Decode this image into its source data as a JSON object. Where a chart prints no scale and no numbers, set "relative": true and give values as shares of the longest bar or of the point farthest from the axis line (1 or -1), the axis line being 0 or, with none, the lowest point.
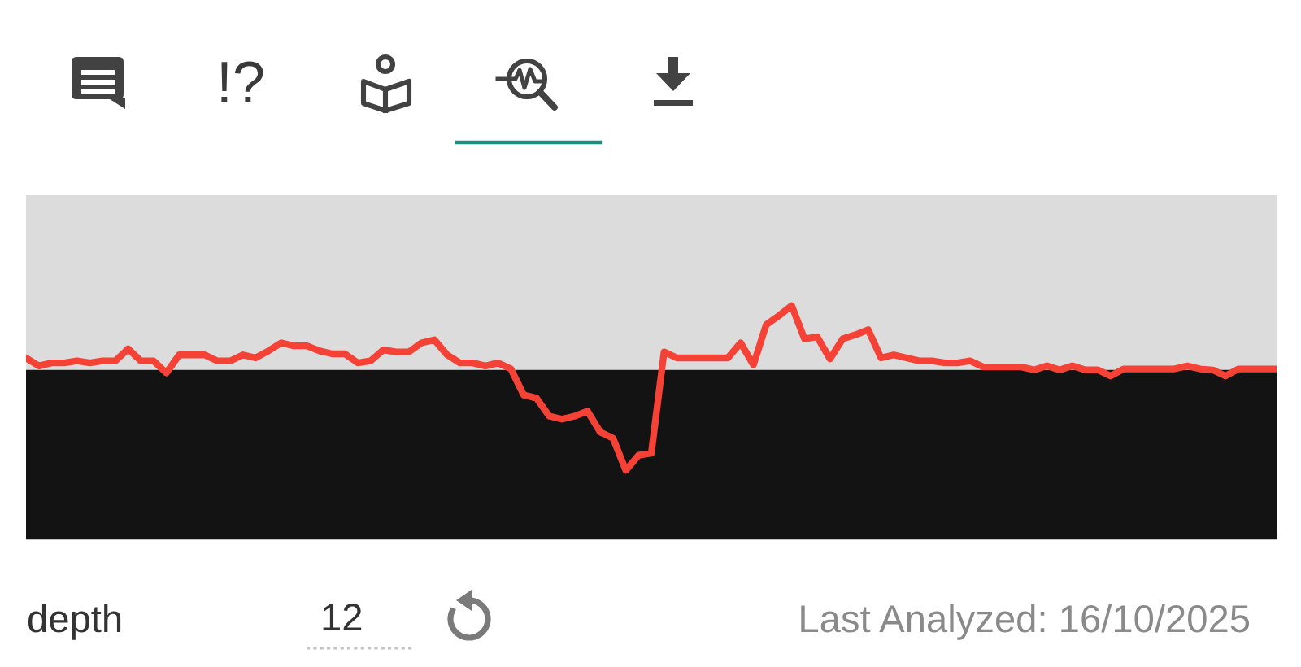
{
  "chart_data": {
    "type": "line",
    "relative": true,
    "categories": [
      null,
      null,
      null,
      null,
      null,
      null,
      null,
      null,
      null,
      null,
      null,
      null,
      null,
      null,
      null,
      null,
      null,
      null,
      null,
      null,
      null,
      null,
      null,
      null,
      null,
      null,
      null,
      null,
      null,
      null,
      null,
      null,
      null,
      null,
      null,
      null,
      null,
      null,
      null,
      null,
      null,
      null,
      null,
      null,
      null,
      null,
      null,
      null,
      null,
      null,
      null,
      null,
      null,
      null,
      null,
      null,
      null,
      null,
      null,
      null,
      null,
      null,
      null,
      null,
      null,
      null,
      null,
      null,
      null,
      null,
      null,
      null,
      null,
      null,
      null,
      null,
      null,
      null,
      null,
      null,
      null,
      null,
      null,
      null,
      null,
      null,
      null,
      null,
      null,
      null,
      null,
      null,
      null,
      null,
      null,
      null,
      null,
      null,
      null
    ],
    "series": [
      {
        "color": "#f44336",
        "values": [
          0.12,
          0.04,
          0.07,
          0.07,
          0.09,
          0.07,
          0.09,
          0.09,
          0.21,
          0.09,
          0.09,
          -0.03,
          0.15,
          0.15,
          0.15,
          0.09,
          0.09,
          0.15,
          0.12,
          0.19,
          0.27,
          0.24,
          0.24,
          0.19,
          0.16,
          0.16,
          0.07,
          0.09,
          0.2,
          0.18,
          0.18,
          0.27,
          0.3,
          0.15,
          0.07,
          0.07,
          0.04,
          0.07,
          0.01,
          -0.25,
          -0.28,
          -0.46,
          -0.49,
          -0.46,
          -0.41,
          -0.62,
          -0.68,
          -1,
          -0.85,
          -0.83,
          0.18,
          0.12,
          0.12,
          0.12,
          0.12,
          0.12,
          0.27,
          0.05,
          0.45,
          0.54,
          0.64,
          0.31,
          0.33,
          0.11,
          0.31,
          0.35,
          0.4,
          0.12,
          0.15,
          0.12,
          0.09,
          0.09,
          0.07,
          0.07,
          0.09,
          0.03,
          0.03,
          0.03,
          0.03,
          0,
          0.04,
          0,
          0.04,
          0,
          0,
          -0.06,
          0.01,
          0.01,
          0.01,
          0.01,
          0.01,
          0.04,
          0.01,
          0,
          -0.06,
          0.01,
          0.01,
          0.01,
          0.01
        ]
      }
    ],
    "bands": [
      {
        "axis": "y",
        "from": 0,
        "to": 1.74,
        "color": "#dcdcdc"
      },
      {
        "axis": "y",
        "from": -1.69,
        "to": 0,
        "color": "#131313"
      }
    ],
    "annotations": [
      "!?",
      "depth",
      "12",
      "Last Analyzed: 16/10/2025"
    ]
  }
}
